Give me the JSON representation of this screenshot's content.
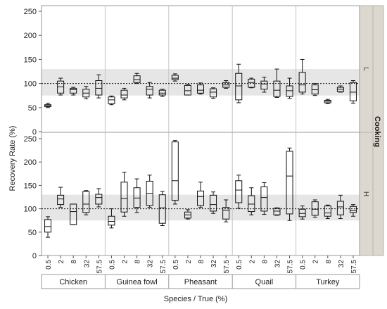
{
  "chart_data": {
    "type": "box",
    "ylabel": "Recovery Rate (%)",
    "xlabel": "Species / True (%)",
    "facet_label": "Cooking",
    "ylim": [
      0,
      260
    ],
    "yticks": [
      0,
      50,
      100,
      150,
      200,
      250
    ],
    "reference_line": 100,
    "reference_band": [
      75,
      130
    ],
    "species": [
      "Chicken",
      "Guinea fowl",
      "Pheasant",
      "Quail",
      "Turkey"
    ],
    "levels": [
      "0.5",
      "2",
      "8",
      "32",
      "57.5"
    ],
    "panels": [
      {
        "label": "L",
        "boxes": {
          "Chicken": [
            [
              50,
              52,
              54,
              56,
              59
            ],
            [
              76,
              80,
              93,
              105,
              111
            ],
            [
              76,
              80,
              87,
              90,
              92
            ],
            [
              68,
              72,
              80,
              88,
              94
            ],
            [
              70,
              76,
              90,
              106,
              118
            ]
          ],
          "Guinea fowl": [
            [
              56,
              58,
              66,
              72,
              74
            ],
            [
              66,
              70,
              76,
              86,
              90
            ],
            [
              100,
              102,
              108,
              116,
              121
            ],
            [
              70,
              76,
              88,
              94,
              102
            ],
            [
              73,
              76,
              80,
              86,
              88
            ]
          ],
          "Pheasant": [
            [
              105,
              108,
              111,
              117,
              120
            ],
            [
              76,
              76,
              85,
              96,
              98
            ],
            [
              78,
              80,
              86,
              97,
              101
            ],
            [
              69,
              72,
              82,
              89,
              91
            ],
            [
              90,
              92,
              97,
              102,
              106
            ]
          ],
          "Quail": [
            [
              60,
              66,
              95,
              121,
              140
            ],
            [
              91,
              92,
              102,
              109,
              111
            ],
            [
              82,
              88,
              99,
              105,
              113
            ],
            [
              71,
              73,
              86,
              105,
              130
            ],
            [
              69,
              73,
              85,
              95,
              111
            ]
          ],
          "Turkey": [
            [
              78,
              82,
              97,
              123,
              150
            ],
            [
              75,
              78,
              87,
              97,
              100
            ],
            [
              58,
              60,
              63,
              65,
              67
            ],
            [
              82,
              83,
              88,
              92,
              95
            ],
            [
              59,
              64,
              82,
              102,
              106
            ]
          ]
        }
      },
      {
        "label": "H",
        "boxes": {
          "Chicken": [
            [
              39,
              50,
              62,
              77,
              83
            ],
            [
              103,
              109,
              121,
              129,
              146
            ],
            [
              66,
              66,
              94,
              110,
              110
            ],
            [
              87,
              92,
              110,
              137,
              139
            ],
            [
              104,
              110,
              124,
              131,
              143
            ]
          ],
          "Guinea fowl": [
            [
              59,
              65,
              73,
              84,
              100
            ],
            [
              84,
              93,
              122,
              157,
              178
            ],
            [
              92,
              103,
              123,
              145,
              164
            ],
            [
              103,
              107,
              133,
              159,
              172
            ],
            [
              64,
              69,
              102,
              130,
              137
            ]
          ],
          "Pheasant": [
            [
              110,
              118,
              160,
              243,
              246
            ],
            [
              78,
              80,
              87,
              93,
              98
            ],
            [
              103,
              107,
              126,
              138,
              157
            ],
            [
              90,
              95,
              109,
              129,
              136
            ],
            [
              72,
              78,
              97,
              103,
              119
            ]
          ],
          "Quail": [
            [
              101,
              113,
              140,
              160,
              172
            ],
            [
              87,
              94,
              110,
              128,
              145
            ],
            [
              88,
              95,
              124,
              147,
              156
            ],
            [
              86,
              87,
              95,
              101,
              102
            ],
            [
              75,
              89,
              170,
              223,
              230
            ]
          ],
          "Turkey": [
            [
              78,
              83,
              90,
              99,
              106
            ],
            [
              82,
              86,
              99,
              115,
              119
            ],
            [
              79,
              84,
              91,
              106,
              108
            ],
            [
              79,
              87,
              104,
              116,
              129
            ],
            [
              84,
              92,
              96,
              105,
              109
            ]
          ]
        }
      }
    ]
  }
}
